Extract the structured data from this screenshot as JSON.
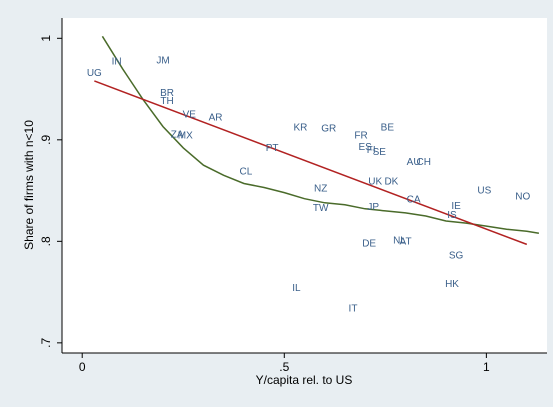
{
  "chart_data": {
    "type": "scatter",
    "xlabel": "Y/capita rel. to US",
    "ylabel": "Share of firms with n<10",
    "xlim": [
      -0.05,
      1.15
    ],
    "ylim": [
      0.69,
      1.02
    ],
    "x_ticks": [
      {
        "value": 0,
        "label": "0"
      },
      {
        "value": 0.5,
        "label": ".5"
      },
      {
        "value": 1,
        "label": "1"
      }
    ],
    "y_ticks": [
      {
        "value": 0.7,
        "label": ".7"
      },
      {
        "value": 0.8,
        "label": ".8"
      },
      {
        "value": 0.9,
        "label": ".9"
      },
      {
        "value": 1,
        "label": "1"
      }
    ],
    "grid": false,
    "colors": {
      "points": "#3a5f8a",
      "fit_line": "#b22222",
      "smooth_line": "#4a6b2a",
      "plot_bg": "#ffffff",
      "page_bg": "#e8eef2"
    },
    "points": [
      {
        "label": "UG",
        "x": 0.03,
        "y": 0.967
      },
      {
        "label": "IN",
        "x": 0.085,
        "y": 0.978
      },
      {
        "label": "JM",
        "x": 0.2,
        "y": 0.979
      },
      {
        "label": "BR",
        "x": 0.21,
        "y": 0.947
      },
      {
        "label": "TH",
        "x": 0.21,
        "y": 0.939
      },
      {
        "label": "VE",
        "x": 0.265,
        "y": 0.926
      },
      {
        "label": "AR",
        "x": 0.33,
        "y": 0.923
      },
      {
        "label": "ZA",
        "x": 0.235,
        "y": 0.906
      },
      {
        "label": "MX",
        "x": 0.255,
        "y": 0.905
      },
      {
        "label": "KR",
        "x": 0.54,
        "y": 0.913
      },
      {
        "label": "GR",
        "x": 0.61,
        "y": 0.912
      },
      {
        "label": "BE",
        "x": 0.755,
        "y": 0.913
      },
      {
        "label": "FR",
        "x": 0.69,
        "y": 0.905
      },
      {
        "label": "PT",
        "x": 0.47,
        "y": 0.893
      },
      {
        "label": "ES",
        "x": 0.7,
        "y": 0.894
      },
      {
        "label": "FI",
        "x": 0.715,
        "y": 0.891
      },
      {
        "label": "SE",
        "x": 0.735,
        "y": 0.889
      },
      {
        "label": "AU",
        "x": 0.82,
        "y": 0.879
      },
      {
        "label": "CH",
        "x": 0.845,
        "y": 0.879
      },
      {
        "label": "CL",
        "x": 0.405,
        "y": 0.87
      },
      {
        "label": "UK",
        "x": 0.725,
        "y": 0.86
      },
      {
        "label": "DK",
        "x": 0.765,
        "y": 0.86
      },
      {
        "label": "NZ",
        "x": 0.59,
        "y": 0.853
      },
      {
        "label": "US",
        "x": 0.995,
        "y": 0.851
      },
      {
        "label": "NO",
        "x": 1.09,
        "y": 0.845
      },
      {
        "label": "CA",
        "x": 0.82,
        "y": 0.842
      },
      {
        "label": "TW",
        "x": 0.59,
        "y": 0.834
      },
      {
        "label": "JP",
        "x": 0.72,
        "y": 0.835
      },
      {
        "label": "IE",
        "x": 0.925,
        "y": 0.836
      },
      {
        "label": "IS",
        "x": 0.915,
        "y": 0.827
      },
      {
        "label": "NL",
        "x": 0.785,
        "y": 0.802
      },
      {
        "label": "AT",
        "x": 0.8,
        "y": 0.801
      },
      {
        "label": "DE",
        "x": 0.71,
        "y": 0.799
      },
      {
        "label": "SG",
        "x": 0.925,
        "y": 0.787
      },
      {
        "label": "HK",
        "x": 0.915,
        "y": 0.759
      },
      {
        "label": "IL",
        "x": 0.53,
        "y": 0.755
      },
      {
        "label": "IT",
        "x": 0.67,
        "y": 0.735
      }
    ],
    "fit_line": {
      "x": [
        0.03,
        1.1
      ],
      "y": [
        0.958,
        0.797
      ]
    },
    "smooth_line": {
      "x": [
        0.05,
        0.1,
        0.15,
        0.2,
        0.25,
        0.3,
        0.35,
        0.4,
        0.45,
        0.5,
        0.55,
        0.6,
        0.65,
        0.7,
        0.75,
        0.8,
        0.85,
        0.9,
        0.95,
        1.0,
        1.05,
        1.1,
        1.13
      ],
      "y": [
        1.002,
        0.97,
        0.94,
        0.913,
        0.892,
        0.875,
        0.865,
        0.857,
        0.853,
        0.848,
        0.842,
        0.838,
        0.836,
        0.832,
        0.83,
        0.828,
        0.825,
        0.82,
        0.818,
        0.815,
        0.812,
        0.81,
        0.808
      ]
    }
  }
}
